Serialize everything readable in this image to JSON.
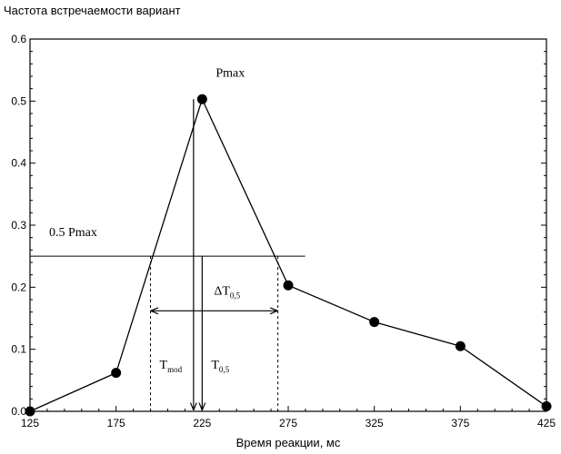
{
  "chart_data": {
    "type": "line",
    "title": "",
    "ylabel": "Частота встречаемости вариант",
    "xlabel": "Время реакции, мс",
    "x": [
      125,
      175,
      225,
      275,
      325,
      375,
      425
    ],
    "y": [
      0.0,
      0.062,
      0.503,
      0.203,
      0.144,
      0.105,
      0.008
    ],
    "xlim": [
      125,
      425
    ],
    "ylim": [
      0.0,
      0.6
    ],
    "x_ticks": [
      "125",
      "175",
      "225",
      "275",
      "325",
      "375",
      "425"
    ],
    "y_ticks": [
      "0.0",
      "0.1",
      "0.2",
      "0.3",
      "0.4",
      "0.5",
      "0.6"
    ],
    "grid": false,
    "annotations": {
      "pmax": "Pmax",
      "half_pmax": "0.5 Pmax",
      "half_pmax_value": 0.25,
      "delta_t_prefix": "ΔT",
      "delta_t_sub": "0,5",
      "t_mod_prefix": "T",
      "t_mod_sub": "mod",
      "t_mod_x": 220,
      "t05_prefix": "T",
      "t05_sub": "0,5",
      "t05_x": 225,
      "interval_left_x": 195,
      "interval_right_x": 269,
      "interval_level": 0.162
    }
  }
}
